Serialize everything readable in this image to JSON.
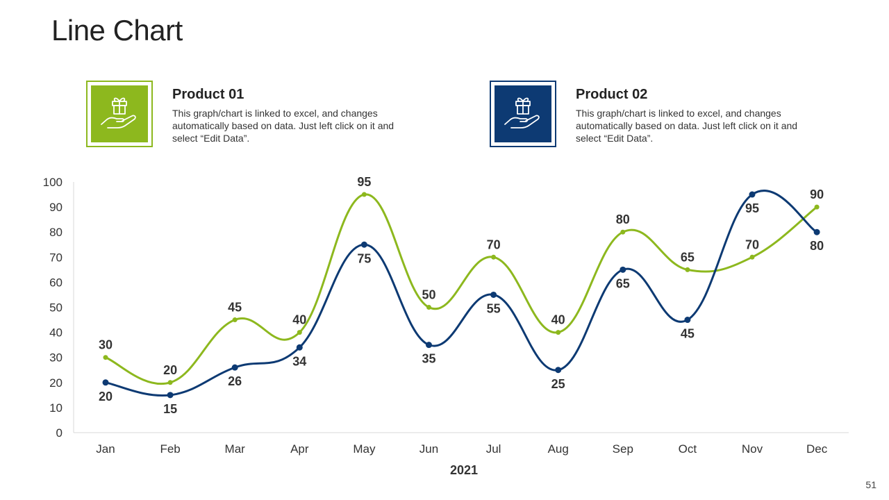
{
  "page": {
    "title": "Line Chart",
    "page_number": "51"
  },
  "legend": [
    {
      "title": "Product 01",
      "description": "This graph/chart is linked to excel, and changes automatically based on data. Just left click on it and select “Edit Data”.",
      "icon": "gift-in-hand-icon",
      "color": "#8DB81E"
    },
    {
      "title": "Product 02",
      "description": "This graph/chart is linked to excel, and changes automatically based on data. Just left click on it and select “Edit Data”.",
      "icon": "gift-in-hand-icon",
      "color": "#0D3A73"
    }
  ],
  "chart_data": {
    "type": "line",
    "title": "",
    "xlabel": "2021",
    "ylabel": "",
    "categories": [
      "Jan",
      "Feb",
      "Mar",
      "Apr",
      "May",
      "Jun",
      "Jul",
      "Aug",
      "Sep",
      "Oct",
      "Nov",
      "Dec"
    ],
    "ylim": [
      0,
      100
    ],
    "yticks": [
      0,
      10,
      20,
      30,
      40,
      50,
      60,
      70,
      80,
      90,
      100
    ],
    "grid": false,
    "smooth": true,
    "series": [
      {
        "name": "Product 01",
        "color": "#8DB81E",
        "values": [
          30,
          20,
          45,
          40,
          95,
          50,
          70,
          40,
          80,
          65,
          70,
          90
        ],
        "label_positions": [
          "above",
          "above",
          "above",
          "above",
          "above",
          "above",
          "above",
          "above",
          "above",
          "above",
          "above",
          "above"
        ]
      },
      {
        "name": "Product 02",
        "color": "#0D3A73",
        "values": [
          20,
          15,
          26,
          34,
          75,
          35,
          55,
          25,
          65,
          45,
          95,
          80
        ],
        "label_positions": [
          "below",
          "below",
          "below",
          "below",
          "below",
          "below",
          "below",
          "below",
          "below",
          "below",
          "below",
          "below"
        ]
      }
    ]
  }
}
